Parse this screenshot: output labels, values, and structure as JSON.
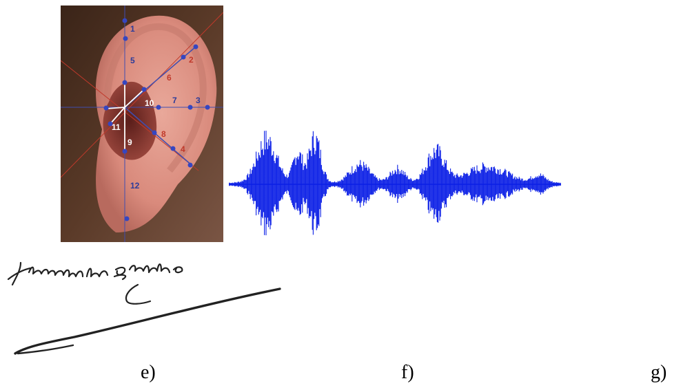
{
  "colors": {
    "landmark_blue": "#2b3b9a",
    "landmark_red": "#c0392b",
    "waveform_blue": "#0a1ee6",
    "ink": "#222222"
  },
  "ear_figure": {
    "landmarks": [
      {
        "label": "1",
        "color": "blue"
      },
      {
        "label": "2",
        "color": "red"
      },
      {
        "label": "3",
        "color": "blue"
      },
      {
        "label": "4",
        "color": "red"
      },
      {
        "label": "5",
        "color": "blue"
      },
      {
        "label": "6",
        "color": "red"
      },
      {
        "label": "7",
        "color": "blue"
      },
      {
        "label": "8",
        "color": "red"
      },
      {
        "label": "9",
        "color": "white"
      },
      {
        "label": "10",
        "color": "white"
      },
      {
        "label": "11",
        "color": "white"
      },
      {
        "label": "12",
        "color": "blue"
      }
    ]
  },
  "waveform": {
    "icon": "speech-waveform-icon"
  },
  "signature": {
    "text": "Théophile Gautier"
  },
  "captions": {
    "e": "e)",
    "f": "f)",
    "g": "g)"
  }
}
